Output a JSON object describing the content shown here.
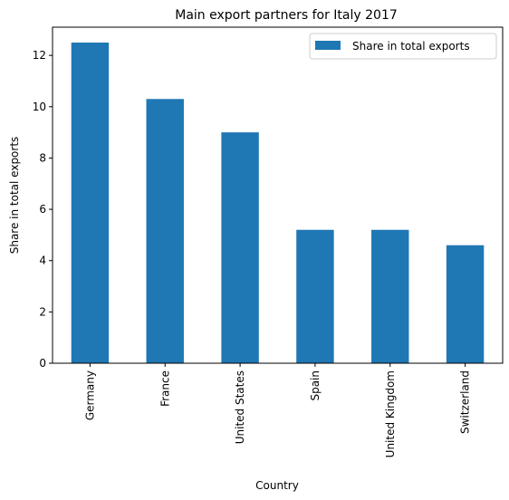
{
  "chart_data": {
    "type": "bar",
    "title": "Main export partners for Italy 2017",
    "xlabel": "Country",
    "ylabel": "Share in total exports",
    "categories": [
      "Germany",
      "France",
      "United States",
      "Spain",
      "United Kingdom",
      "Switzerland"
    ],
    "series": [
      {
        "name": "Share in total exports",
        "values": [
          12.5,
          10.3,
          9.0,
          5.2,
          5.2,
          4.6
        ],
        "color": "#1f77b4"
      }
    ],
    "ylim": [
      0,
      13.1
    ],
    "yticks": [
      0,
      2,
      4,
      6,
      8,
      10,
      12
    ],
    "grid": false,
    "legend": "top-right"
  }
}
